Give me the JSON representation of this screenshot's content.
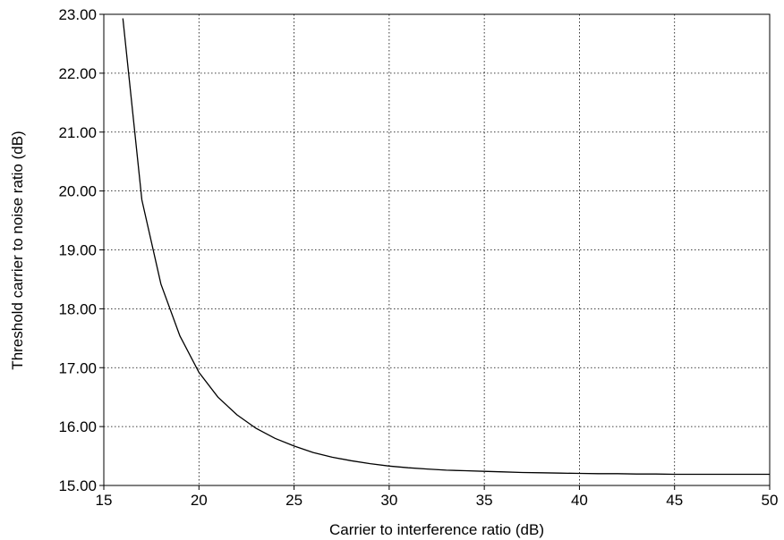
{
  "chart_data": {
    "type": "line",
    "title": "",
    "xlabel": "Carrier to interference ratio (dB)",
    "ylabel": "Threshold carrier to noise ratio (dB)",
    "xlim": [
      15,
      50
    ],
    "ylim": [
      15.0,
      23.0
    ],
    "x_ticks": [
      15,
      20,
      25,
      30,
      35,
      40,
      45,
      50
    ],
    "x_tick_labels": [
      "15",
      "20",
      "25",
      "30",
      "35",
      "40",
      "45",
      "50"
    ],
    "y_ticks": [
      15,
      16,
      17,
      18,
      19,
      20,
      21,
      22,
      23
    ],
    "y_tick_labels": [
      "15.00",
      "16.00",
      "17.00",
      "18.00",
      "19.00",
      "20.00",
      "21.00",
      "22.00",
      "23.00"
    ],
    "grid": true,
    "legend": "none",
    "series": [
      {
        "x": [
          16,
          17,
          18,
          19,
          20,
          21,
          22,
          23,
          24,
          25,
          26,
          27,
          28,
          29,
          30,
          31,
          32,
          33,
          34,
          35,
          36,
          37,
          38,
          39,
          40,
          41,
          42,
          43,
          44,
          45,
          46,
          47,
          48,
          49,
          50
        ],
        "y": [
          22.93,
          19.85,
          18.42,
          17.54,
          16.92,
          16.5,
          16.2,
          15.97,
          15.8,
          15.67,
          15.56,
          15.48,
          15.42,
          15.37,
          15.33,
          15.3,
          15.28,
          15.26,
          15.25,
          15.24,
          15.23,
          15.22,
          15.215,
          15.21,
          15.205,
          15.2,
          15.2,
          15.195,
          15.195,
          15.19,
          15.19,
          15.19,
          15.19,
          15.19,
          15.19
        ]
      }
    ]
  }
}
